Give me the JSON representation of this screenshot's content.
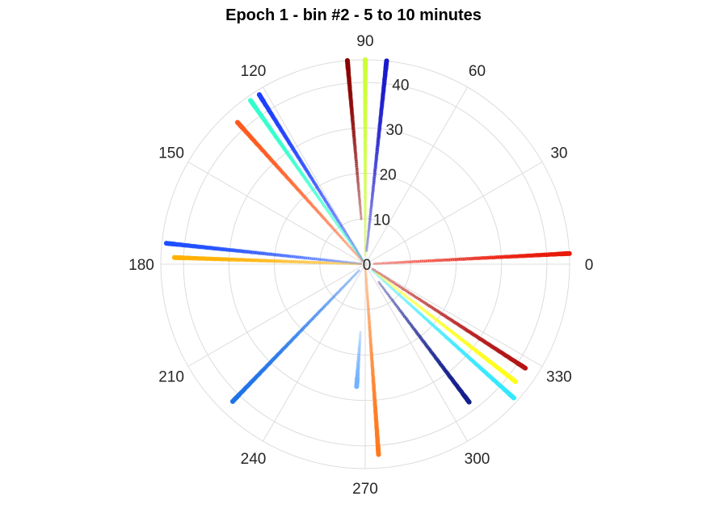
{
  "chart_data": {
    "type": "scatter",
    "coordinate_system": "polar",
    "title": "Epoch 1 - bin #2 - 5 to 10 minutes",
    "angle_unit": "degrees",
    "angular_ticks": [
      "0",
      "30",
      "60",
      "90",
      "120",
      "150",
      "180",
      "210",
      "240",
      "270",
      "300",
      "330"
    ],
    "radial_ticks": [
      "0",
      "10",
      "20",
      "30",
      "40"
    ],
    "rlim": [
      0,
      45
    ],
    "grid": true,
    "legend": "none",
    "series": [
      {
        "color": "#e81a0a",
        "angle": 3,
        "r_range": [
          2,
          45
        ]
      },
      {
        "color": "#8b0000",
        "angle": 95,
        "r_range": [
          10,
          45
        ]
      },
      {
        "color": "#ccff33",
        "angle": 90,
        "r_range": [
          2,
          45
        ]
      },
      {
        "color": "#1a1acc",
        "angle": 84,
        "r_range": [
          3,
          45
        ]
      },
      {
        "color": "#1f3fff",
        "angle": 122,
        "r_range": [
          1,
          44
        ]
      },
      {
        "color": "#33ffcc",
        "angle": 125,
        "r_range": [
          1,
          44
        ]
      },
      {
        "color": "#ff5a1f",
        "angle": 132,
        "r_range": [
          1,
          42
        ]
      },
      {
        "color": "#1f4fff",
        "angle": 174,
        "r_range": [
          1,
          44
        ]
      },
      {
        "color": "#ffb000",
        "angle": 178,
        "r_range": [
          1,
          42
        ]
      },
      {
        "color": "#1f73e8",
        "angle": 226,
        "r_range": [
          2,
          42
        ]
      },
      {
        "color": "#73b3ff",
        "angle": 266,
        "r_range": [
          15,
          27
        ]
      },
      {
        "color": "#ff7a1f",
        "angle": 274,
        "r_range": [
          1,
          42
        ]
      },
      {
        "color": "#141e8c",
        "angle": 307,
        "r_range": [
          5,
          38
        ]
      },
      {
        "color": "#33e8ff",
        "angle": 318,
        "r_range": [
          2,
          44
        ]
      },
      {
        "color": "#ffff1a",
        "angle": 322,
        "r_range": [
          3,
          42
        ]
      },
      {
        "color": "#b31414",
        "angle": 327,
        "r_range": [
          2,
          42
        ]
      }
    ]
  }
}
